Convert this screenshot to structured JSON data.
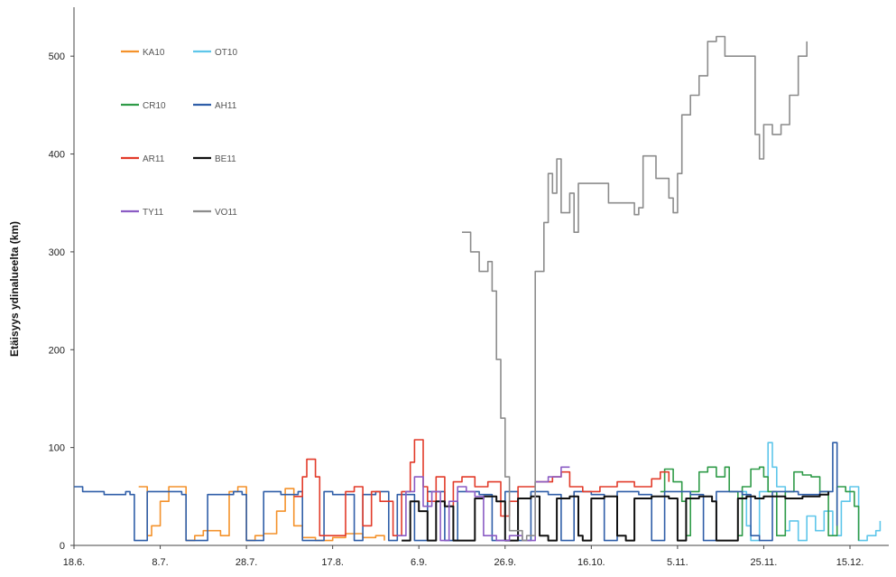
{
  "chart_data": {
    "type": "line",
    "title": "",
    "xlabel": "",
    "ylabel": "Etäisyys ydinalueelta (km)",
    "ylim": [
      0,
      550
    ],
    "yticks": [
      0,
      100,
      200,
      300,
      400,
      500
    ],
    "xlim": [
      "18.6.",
      "24.12."
    ],
    "xticks": [
      "18.6.",
      "8.7.",
      "28.7.",
      "17.8.",
      "6.9.",
      "26.9.",
      "16.10.",
      "5.11.",
      "25.11.",
      "15.12."
    ],
    "grid": false,
    "legend": {
      "position": "top-left",
      "columns": 2
    },
    "series": [
      {
        "name": "KA10",
        "color": "#f4922b",
        "points": [
          [
            "3.7.",
            60
          ],
          [
            "5.7.",
            10
          ],
          [
            "6.7.",
            20
          ],
          [
            "8.7.",
            45
          ],
          [
            "10.7.",
            60
          ],
          [
            "12.7.",
            60
          ],
          [
            "14.7.",
            5
          ],
          [
            "16.7.",
            10
          ],
          [
            "18.7.",
            15
          ],
          [
            "22.7.",
            10
          ],
          [
            "24.7.",
            55
          ],
          [
            "26.7.",
            60
          ],
          [
            "28.7.",
            5
          ],
          [
            "30.7.",
            10
          ],
          [
            "1.8.",
            12
          ],
          [
            "4.8.",
            35
          ],
          [
            "6.8.",
            58
          ],
          [
            "8.8.",
            20
          ],
          [
            "10.8.",
            8
          ],
          [
            "13.8.",
            5
          ],
          [
            "17.8.",
            8
          ],
          [
            "20.8.",
            12
          ],
          [
            "24.8.",
            8
          ],
          [
            "27.8.",
            10
          ],
          [
            "29.8.",
            5
          ]
        ]
      },
      {
        "name": "OT10",
        "color": "#5ec6ea",
        "points": [
          [
            "20.11.",
            55
          ],
          [
            "21.11.",
            20
          ],
          [
            "22.11.",
            5
          ],
          [
            "24.11.",
            55
          ],
          [
            "26.11.",
            105
          ],
          [
            "27.11.",
            80
          ],
          [
            "28.11.",
            60
          ],
          [
            "30.11.",
            15
          ],
          [
            "1.12.",
            25
          ],
          [
            "3.12.",
            5
          ],
          [
            "5.12.",
            30
          ],
          [
            "7.12.",
            15
          ],
          [
            "9.12.",
            35
          ],
          [
            "11.12.",
            10
          ],
          [
            "13.12.",
            45
          ],
          [
            "15.12.",
            60
          ],
          [
            "17.12.",
            5
          ],
          [
            "19.12.",
            10
          ],
          [
            "21.12.",
            15
          ],
          [
            "22.12.",
            25
          ]
        ]
      },
      {
        "name": "CR10",
        "color": "#2f9b48",
        "points": [
          [
            "1.11.",
            55
          ],
          [
            "2.11.",
            78
          ],
          [
            "4.11.",
            65
          ],
          [
            "6.11.",
            45
          ],
          [
            "7.11.",
            10
          ],
          [
            "8.11.",
            55
          ],
          [
            "10.11.",
            75
          ],
          [
            "12.11.",
            80
          ],
          [
            "14.11.",
            70
          ],
          [
            "16.11.",
            80
          ],
          [
            "17.11.",
            55
          ],
          [
            "19.11.",
            10
          ],
          [
            "20.11.",
            60
          ],
          [
            "22.11.",
            78
          ],
          [
            "24.11.",
            80
          ],
          [
            "25.11.",
            70
          ],
          [
            "26.11.",
            55
          ],
          [
            "28.11.",
            10
          ],
          [
            "30.11.",
            55
          ],
          [
            "2.12.",
            75
          ],
          [
            "4.12.",
            72
          ],
          [
            "6.12.",
            70
          ],
          [
            "8.12.",
            55
          ],
          [
            "10.12.",
            10
          ],
          [
            "12.12.",
            60
          ],
          [
            "14.12.",
            55
          ],
          [
            "16.12.",
            40
          ],
          [
            "17.12.",
            5
          ]
        ]
      },
      {
        "name": "AH11",
        "color": "#2f5ea8",
        "points": [
          [
            "18.6.",
            60
          ],
          [
            "20.6.",
            55
          ],
          [
            "25.6.",
            52
          ],
          [
            "30.6.",
            55
          ],
          [
            "1.7.",
            52
          ],
          [
            "2.7.",
            5
          ],
          [
            "4.7.",
            5
          ],
          [
            "5.7.",
            55
          ],
          [
            "10.7.",
            55
          ],
          [
            "13.7.",
            52
          ],
          [
            "14.7.",
            5
          ],
          [
            "18.7.",
            5
          ],
          [
            "19.7.",
            52
          ],
          [
            "25.7.",
            55
          ],
          [
            "27.7.",
            52
          ],
          [
            "28.7.",
            5
          ],
          [
            "31.7.",
            5
          ],
          [
            "1.8.",
            55
          ],
          [
            "5.8.",
            52
          ],
          [
            "9.8.",
            55
          ],
          [
            "10.8.",
            5
          ],
          [
            "13.8.",
            5
          ],
          [
            "15.8.",
            55
          ],
          [
            "17.8.",
            52
          ],
          [
            "22.8.",
            5
          ],
          [
            "24.8.",
            52
          ],
          [
            "27.8.",
            55
          ],
          [
            "30.8.",
            5
          ],
          [
            "1.9.",
            52
          ],
          [
            "5.9.",
            5
          ],
          [
            "8.9.",
            55
          ],
          [
            "12.9.",
            5
          ],
          [
            "15.9.",
            55
          ],
          [
            "20.9.",
            52
          ],
          [
            "23.9.",
            5
          ],
          [
            "26.9.",
            55
          ],
          [
            "29.9.",
            5
          ],
          [
            "2.10.",
            55
          ],
          [
            "6.10.",
            52
          ],
          [
            "9.10.",
            5
          ],
          [
            "12.10.",
            55
          ],
          [
            "16.10.",
            52
          ],
          [
            "19.10.",
            5
          ],
          [
            "22.10.",
            55
          ],
          [
            "27.10.",
            52
          ],
          [
            "30.10.",
            5
          ],
          [
            "2.11.",
            55
          ],
          [
            "8.11.",
            52
          ],
          [
            "11.11.",
            5
          ],
          [
            "14.11.",
            55
          ],
          [
            "20.11.",
            52
          ],
          [
            "22.11.",
            10
          ],
          [
            "24.11.",
            5
          ],
          [
            "27.11.",
            55
          ],
          [
            "3.12.",
            52
          ],
          [
            "8.12.",
            55
          ],
          [
            "10.12.",
            55
          ],
          [
            "11.12.",
            105
          ],
          [
            "12.12.",
            20
          ]
        ]
      },
      {
        "name": "AR11",
        "color": "#e23b2a",
        "points": [
          [
            "8.8.",
            50
          ],
          [
            "10.8.",
            70
          ],
          [
            "11.8.",
            88
          ],
          [
            "13.8.",
            70
          ],
          [
            "14.8.",
            10
          ],
          [
            "17.8.",
            10
          ],
          [
            "20.8.",
            55
          ],
          [
            "22.8.",
            60
          ],
          [
            "24.8.",
            20
          ],
          [
            "26.8.",
            55
          ],
          [
            "28.8.",
            45
          ],
          [
            "31.8.",
            10
          ],
          [
            "2.9.",
            55
          ],
          [
            "4.9.",
            85
          ],
          [
            "5.9.",
            108
          ],
          [
            "7.9.",
            60
          ],
          [
            "8.9.",
            45
          ],
          [
            "10.9.",
            70
          ],
          [
            "12.9.",
            40
          ],
          [
            "14.9.",
            65
          ],
          [
            "16.9.",
            70
          ],
          [
            "19.9.",
            60
          ],
          [
            "22.9.",
            65
          ],
          [
            "25.9.",
            30
          ],
          [
            "27.9.",
            45
          ],
          [
            "29.9.",
            60
          ],
          [
            "3.10.",
            65
          ],
          [
            "7.10.",
            70
          ],
          [
            "9.10.",
            75
          ],
          [
            "11.10.",
            60
          ],
          [
            "14.10.",
            55
          ],
          [
            "18.10.",
            60
          ],
          [
            "22.10.",
            65
          ],
          [
            "26.10.",
            60
          ],
          [
            "30.10.",
            68
          ],
          [
            "1.11.",
            75
          ],
          [
            "3.11.",
            65
          ]
        ]
      },
      {
        "name": "BE11",
        "color": "#111111",
        "points": [
          [
            "2.9.",
            5
          ],
          [
            "4.9.",
            45
          ],
          [
            "6.9.",
            35
          ],
          [
            "8.9.",
            5
          ],
          [
            "10.9.",
            45
          ],
          [
            "12.9.",
            40
          ],
          [
            "14.9.",
            5
          ],
          [
            "17.9.",
            5
          ],
          [
            "19.9.",
            48
          ],
          [
            "21.9.",
            50
          ],
          [
            "24.9.",
            45
          ],
          [
            "26.9.",
            5
          ],
          [
            "29.9.",
            48
          ],
          [
            "2.10.",
            50
          ],
          [
            "4.10.",
            10
          ],
          [
            "6.10.",
            5
          ],
          [
            "8.10.",
            48
          ],
          [
            "11.10.",
            50
          ],
          [
            "13.10.",
            10
          ],
          [
            "14.10.",
            5
          ],
          [
            "16.10.",
            48
          ],
          [
            "19.10.",
            50
          ],
          [
            "22.10.",
            10
          ],
          [
            "24.10.",
            5
          ],
          [
            "26.10.",
            48
          ],
          [
            "30.10.",
            50
          ],
          [
            "3.11.",
            48
          ],
          [
            "5.11.",
            5
          ],
          [
            "7.11.",
            48
          ],
          [
            "10.11.",
            50
          ],
          [
            "13.11.",
            45
          ],
          [
            "14.11.",
            5
          ],
          [
            "17.11.",
            5
          ],
          [
            "19.11.",
            48
          ],
          [
            "21.11.",
            50
          ],
          [
            "23.11.",
            48
          ],
          [
            "25.11.",
            50
          ],
          [
            "30.11.",
            48
          ],
          [
            "4.12.",
            50
          ],
          [
            "8.12.",
            52
          ],
          [
            "10.12.",
            55
          ]
        ]
      },
      {
        "name": "TY11",
        "color": "#8b5cc4",
        "points": [
          [
            "1.9.",
            10
          ],
          [
            "3.9.",
            55
          ],
          [
            "5.9.",
            70
          ],
          [
            "7.9.",
            40
          ],
          [
            "9.9.",
            55
          ],
          [
            "11.9.",
            5
          ],
          [
            "13.9.",
            45
          ],
          [
            "15.9.",
            60
          ],
          [
            "17.9.",
            55
          ],
          [
            "19.9.",
            50
          ],
          [
            "21.9.",
            10
          ],
          [
            "24.9.",
            5
          ],
          [
            "27.9.",
            10
          ],
          [
            "30.9.",
            5
          ],
          [
            "3.10.",
            65
          ],
          [
            "6.10.",
            70
          ],
          [
            "9.10.",
            80
          ],
          [
            "11.10.",
            80
          ]
        ]
      },
      {
        "name": "VO11",
        "color": "#8c8c8c",
        "points": [
          [
            "16.9.",
            320
          ],
          [
            "18.9.",
            300
          ],
          [
            "20.9.",
            280
          ],
          [
            "22.9.",
            290
          ],
          [
            "23.9.",
            260
          ],
          [
            "24.9.",
            190
          ],
          [
            "25.9.",
            130
          ],
          [
            "26.9.",
            70
          ],
          [
            "27.9.",
            15
          ],
          [
            "30.9.",
            5
          ],
          [
            "1.10.",
            10
          ],
          [
            "3.10.",
            280
          ],
          [
            "5.10.",
            330
          ],
          [
            "6.10.",
            380
          ],
          [
            "7.10.",
            360
          ],
          [
            "8.10.",
            395
          ],
          [
            "9.10.",
            340
          ],
          [
            "11.10.",
            360
          ],
          [
            "12.10.",
            320
          ],
          [
            "13.10.",
            370
          ],
          [
            "20.10.",
            350
          ],
          [
            "26.10.",
            338
          ],
          [
            "27.10.",
            345
          ],
          [
            "28.10.",
            398
          ],
          [
            "31.10.",
            375
          ],
          [
            "3.11.",
            355
          ],
          [
            "4.11.",
            340
          ],
          [
            "5.11.",
            380
          ],
          [
            "6.11.",
            440
          ],
          [
            "8.11.",
            460
          ],
          [
            "10.11.",
            480
          ],
          [
            "12.11.",
            515
          ],
          [
            "14.11.",
            520
          ],
          [
            "16.11.",
            500
          ],
          [
            "23.11.",
            420
          ],
          [
            "24.11.",
            395
          ],
          [
            "25.11.",
            430
          ],
          [
            "27.11.",
            420
          ],
          [
            "29.11.",
            430
          ],
          [
            "1.12.",
            460
          ],
          [
            "3.12.",
            500
          ],
          [
            "5.12.",
            515
          ]
        ]
      }
    ]
  }
}
